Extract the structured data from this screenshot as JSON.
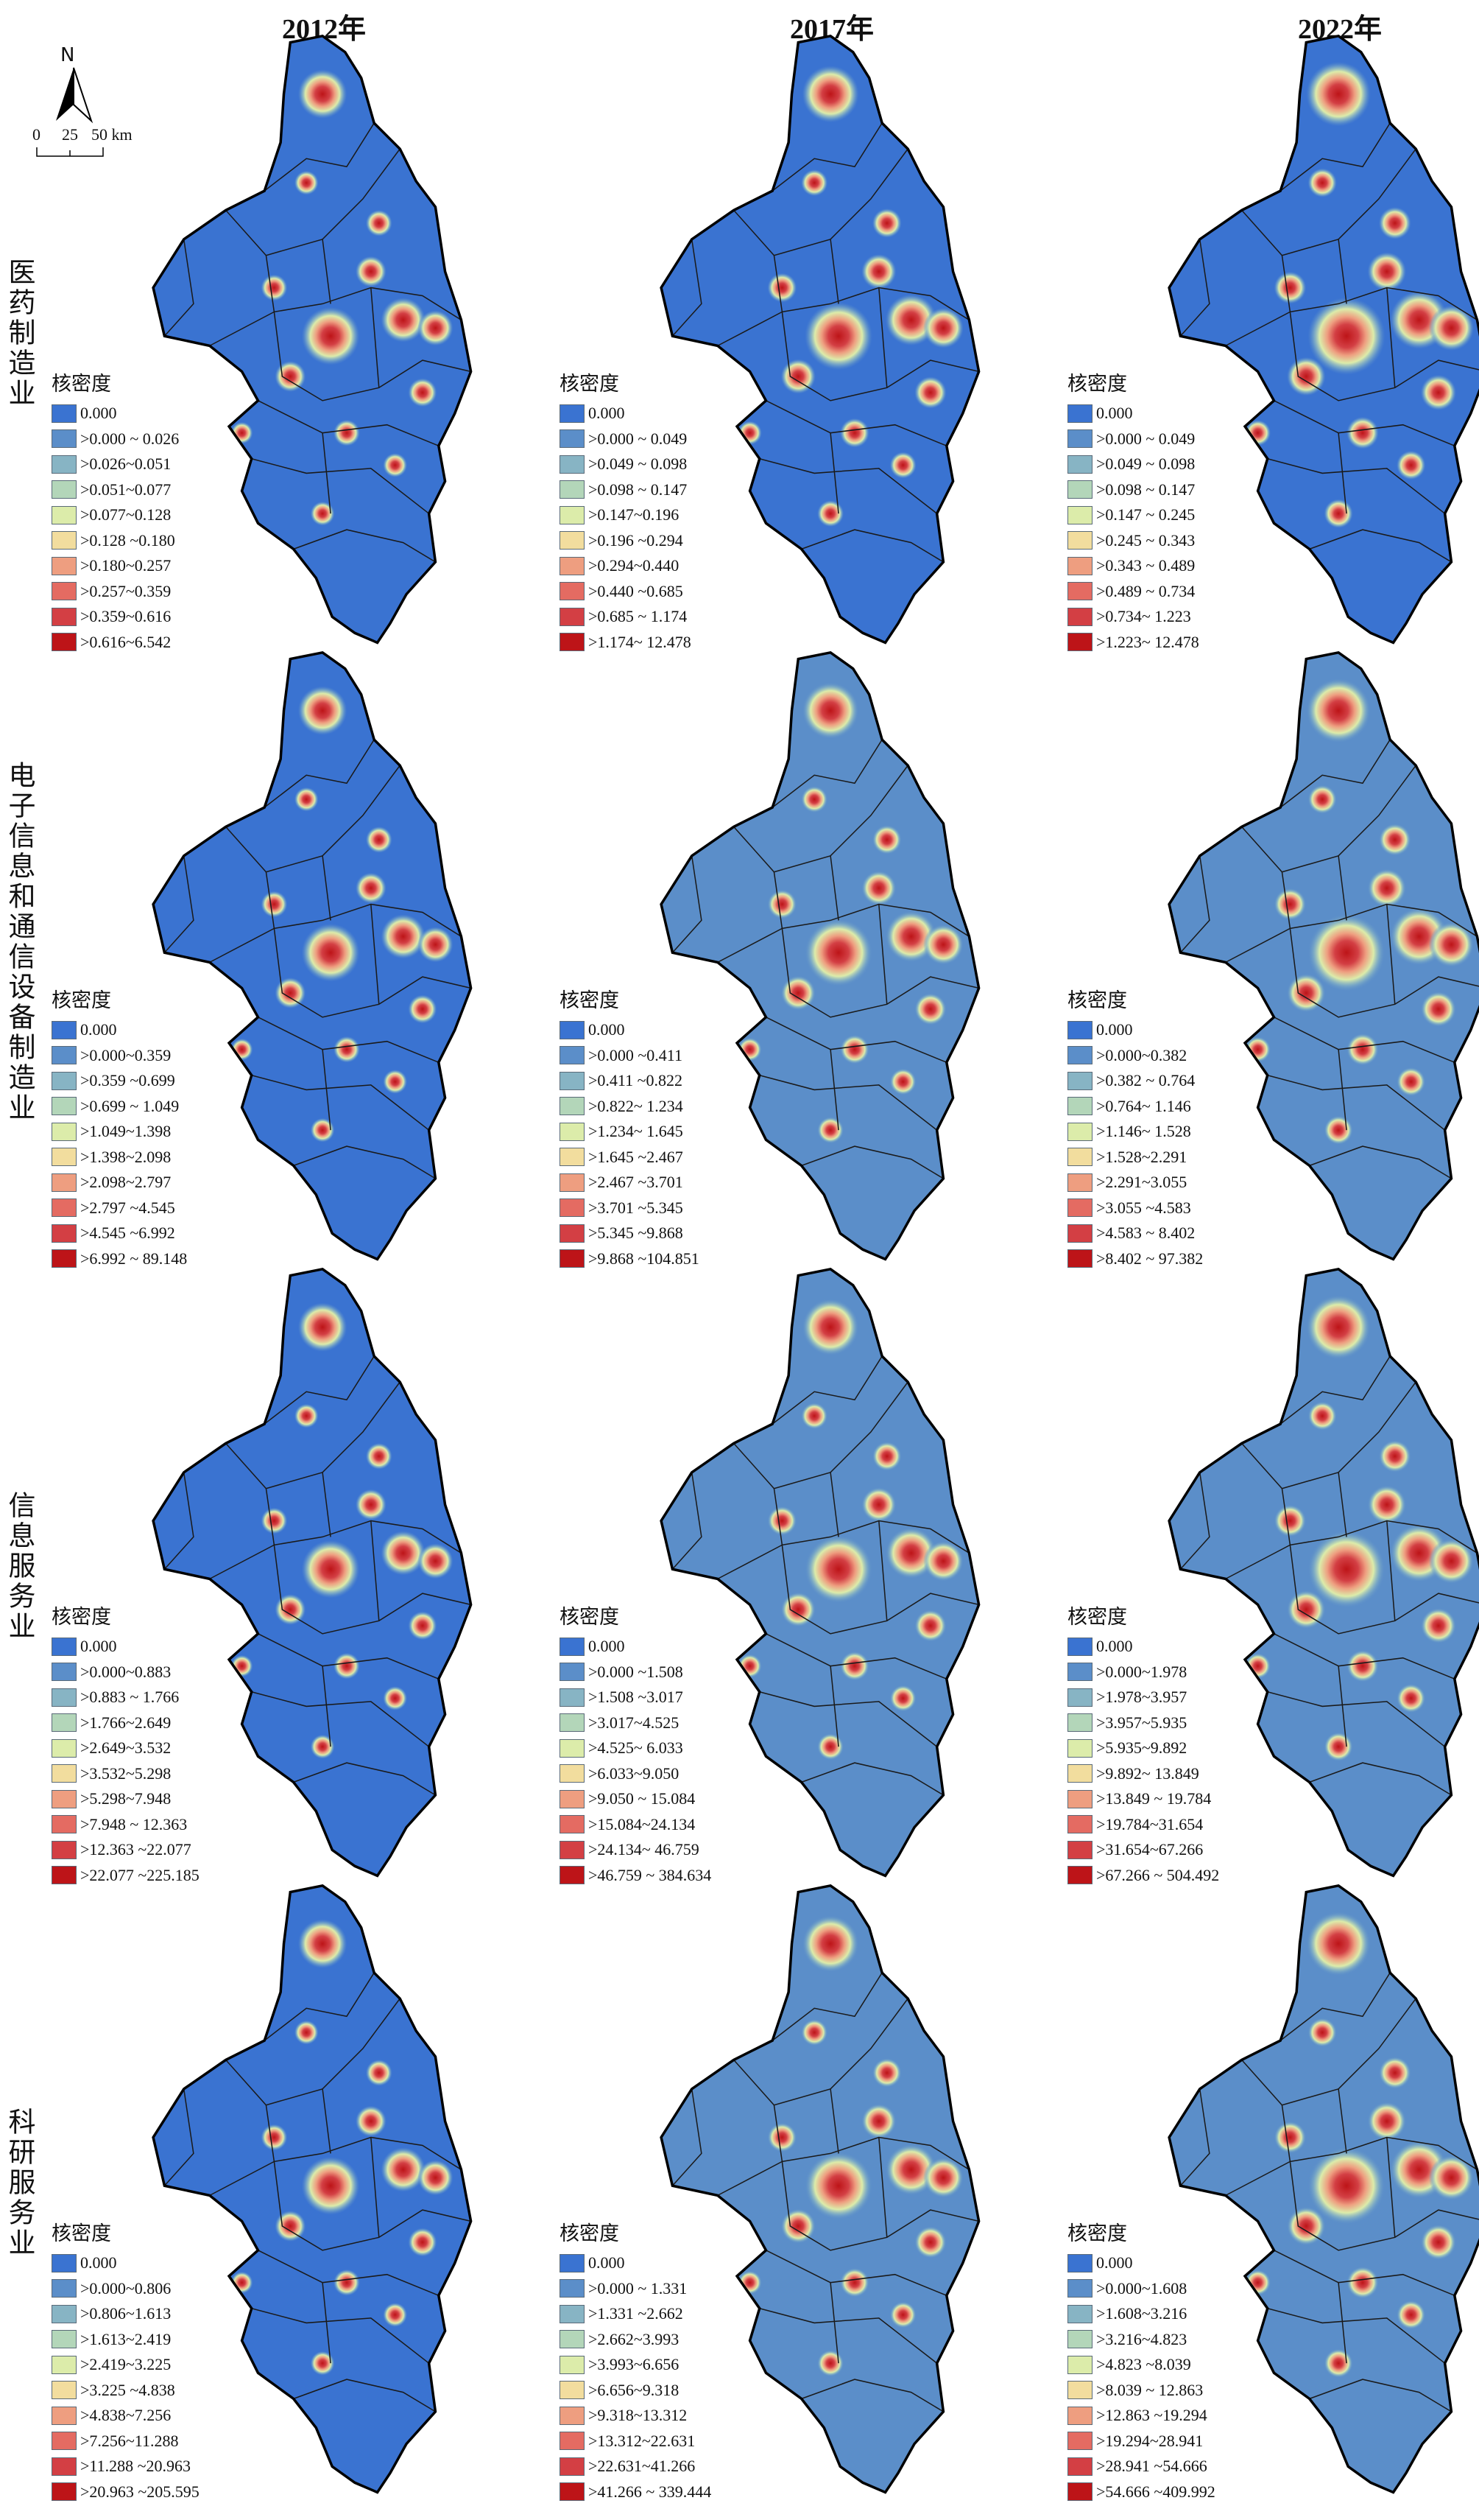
{
  "columns": [
    "2012年",
    "2017年",
    "2022年"
  ],
  "compass": {
    "north_label": "N",
    "scale_labels": [
      "0",
      "25",
      "50 km"
    ]
  },
  "legend_colors": [
    "#3a73d1",
    "#5b8ec9",
    "#87b4c4",
    "#b3d6b9",
    "#dcecaa",
    "#f2dd9e",
    "#ee9e80",
    "#e46b62",
    "#d33f44",
    "#bd1418"
  ],
  "rows": [
    {
      "label": "医药制造业",
      "panels": [
        {
          "legend_title": "核密度",
          "items": [
            "0.000",
            ">0.000 ~ 0.026",
            ">0.026~0.051",
            ">0.051~0.077",
            ">0.077~0.128",
            ">0.128 ~0.180",
            ">0.180~0.257",
            ">0.257~0.359",
            ">0.359~0.616",
            ">0.616~6.542"
          ]
        },
        {
          "legend_title": "核密度",
          "items": [
            "0.000",
            ">0.000 ~ 0.049",
            ">0.049 ~ 0.098",
            ">0.098 ~ 0.147",
            ">0.147~0.196",
            ">0.196 ~0.294",
            ">0.294~0.440",
            ">0.440 ~0.685",
            ">0.685 ~ 1.174",
            ">1.174~ 12.478"
          ]
        },
        {
          "legend_title": "核密度",
          "items": [
            "0.000",
            ">0.000 ~ 0.049",
            ">0.049 ~ 0.098",
            ">0.098 ~ 0.147",
            ">0.147 ~ 0.245",
            ">0.245 ~ 0.343",
            ">0.343 ~ 0.489",
            ">0.489 ~ 0.734",
            ">0.734~ 1.223",
            ">1.223~ 12.478"
          ]
        }
      ]
    },
    {
      "label": "电子信息和通信设备制造业",
      "panels": [
        {
          "legend_title": "核密度",
          "items": [
            "0.000",
            ">0.000~0.359",
            ">0.359 ~0.699",
            ">0.699 ~ 1.049",
            ">1.049~1.398",
            ">1.398~2.098",
            ">2.098~2.797",
            ">2.797 ~4.545",
            ">4.545 ~6.992",
            ">6.992 ~ 89.148"
          ]
        },
        {
          "legend_title": "核密度",
          "items": [
            "0.000",
            ">0.000 ~0.411",
            ">0.411 ~0.822",
            ">0.822~ 1.234",
            ">1.234~ 1.645",
            ">1.645 ~2.467",
            ">2.467 ~3.701",
            ">3.701 ~5.345",
            ">5.345 ~9.868",
            ">9.868 ~104.851"
          ]
        },
        {
          "legend_title": "核密度",
          "items": [
            "0.000",
            ">0.000~0.382",
            ">0.382 ~ 0.764",
            ">0.764~ 1.146",
            ">1.146~ 1.528",
            ">1.528~2.291",
            ">2.291~3.055",
            ">3.055 ~4.583",
            ">4.583 ~ 8.402",
            ">8.402 ~ 97.382"
          ]
        }
      ]
    },
    {
      "label": "信息服务业",
      "panels": [
        {
          "legend_title": "核密度",
          "items": [
            "0.000",
            ">0.000~0.883",
            ">0.883 ~ 1.766",
            ">1.766~2.649",
            ">2.649~3.532",
            ">3.532~5.298",
            ">5.298~7.948",
            ">7.948 ~ 12.363",
            ">12.363 ~22.077",
            ">22.077 ~225.185"
          ]
        },
        {
          "legend_title": "核密度",
          "items": [
            "0.000",
            ">0.000 ~1.508",
            ">1.508 ~3.017",
            ">3.017~4.525",
            ">4.525~ 6.033",
            ">6.033~9.050",
            ">9.050 ~ 15.084",
            ">15.084~24.134",
            ">24.134~ 46.759",
            ">46.759 ~ 384.634"
          ]
        },
        {
          "legend_title": "核密度",
          "items": [
            "0.000",
            ">0.000~1.978",
            ">1.978~3.957",
            ">3.957~5.935",
            ">5.935~9.892",
            ">9.892~ 13.849",
            ">13.849 ~ 19.784",
            ">19.784~31.654",
            ">31.654~67.266",
            ">67.266 ~ 504.492"
          ]
        }
      ]
    },
    {
      "label": "科研服务业",
      "panels": [
        {
          "legend_title": "核密度",
          "items": [
            "0.000",
            ">0.000~0.806",
            ">0.806~1.613",
            ">1.613~2.419",
            ">2.419~3.225",
            ">3.225 ~4.838",
            ">4.838~7.256",
            ">7.256~11.288",
            ">11.288 ~20.963",
            ">20.963 ~205.595"
          ]
        },
        {
          "legend_title": "核密度",
          "items": [
            "0.000",
            ">0.000 ~ 1.331",
            ">1.331 ~2.662",
            ">2.662~3.993",
            ">3.993~6.656",
            ">6.656~9.318",
            ">9.318~13.312",
            ">13.312~22.631",
            ">22.631~41.266",
            ">41.266 ~ 339.444"
          ]
        },
        {
          "legend_title": "核密度",
          "items": [
            "0.000",
            ">0.000~1.608",
            ">1.608~3.216",
            ">3.216~4.823",
            ">4.823 ~8.039",
            ">8.039 ~ 12.863",
            ">12.863 ~19.294",
            ">19.294~28.941",
            ">28.941 ~54.666",
            ">54.666 ~409.992"
          ]
        }
      ]
    }
  ]
}
